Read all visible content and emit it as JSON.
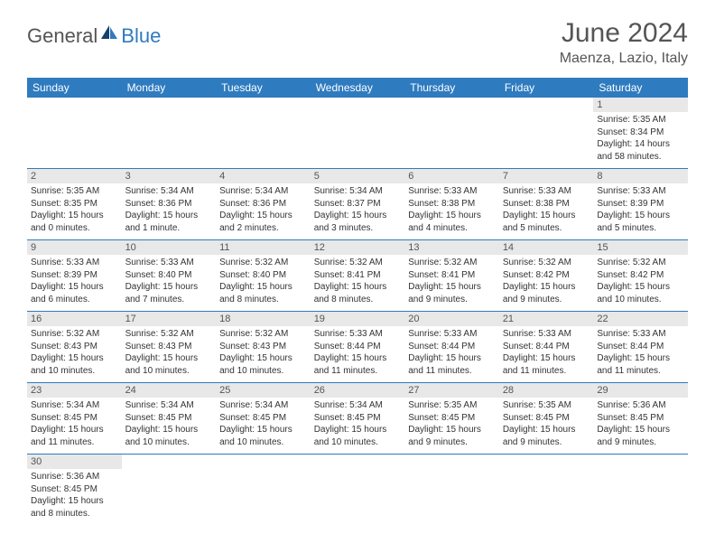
{
  "brand": {
    "part1": "General",
    "part2": "Blue"
  },
  "title": "June 2024",
  "location": "Maenza, Lazio, Italy",
  "colors": {
    "header_bg": "#2f7bbf",
    "header_fg": "#ffffff",
    "daynum_bg": "#e8e8e8",
    "border": "#2f7bbf",
    "brand_grey": "#555555",
    "brand_blue": "#2f7bbf"
  },
  "weekdays": [
    "Sunday",
    "Monday",
    "Tuesday",
    "Wednesday",
    "Thursday",
    "Friday",
    "Saturday"
  ],
  "weeks": [
    [
      null,
      null,
      null,
      null,
      null,
      null,
      {
        "n": "1",
        "sunrise": "5:35 AM",
        "sunset": "8:34 PM",
        "daylight": "14 hours and 58 minutes."
      }
    ],
    [
      {
        "n": "2",
        "sunrise": "5:35 AM",
        "sunset": "8:35 PM",
        "daylight": "15 hours and 0 minutes."
      },
      {
        "n": "3",
        "sunrise": "5:34 AM",
        "sunset": "8:36 PM",
        "daylight": "15 hours and 1 minute."
      },
      {
        "n": "4",
        "sunrise": "5:34 AM",
        "sunset": "8:36 PM",
        "daylight": "15 hours and 2 minutes."
      },
      {
        "n": "5",
        "sunrise": "5:34 AM",
        "sunset": "8:37 PM",
        "daylight": "15 hours and 3 minutes."
      },
      {
        "n": "6",
        "sunrise": "5:33 AM",
        "sunset": "8:38 PM",
        "daylight": "15 hours and 4 minutes."
      },
      {
        "n": "7",
        "sunrise": "5:33 AM",
        "sunset": "8:38 PM",
        "daylight": "15 hours and 5 minutes."
      },
      {
        "n": "8",
        "sunrise": "5:33 AM",
        "sunset": "8:39 PM",
        "daylight": "15 hours and 5 minutes."
      }
    ],
    [
      {
        "n": "9",
        "sunrise": "5:33 AM",
        "sunset": "8:39 PM",
        "daylight": "15 hours and 6 minutes."
      },
      {
        "n": "10",
        "sunrise": "5:33 AM",
        "sunset": "8:40 PM",
        "daylight": "15 hours and 7 minutes."
      },
      {
        "n": "11",
        "sunrise": "5:32 AM",
        "sunset": "8:40 PM",
        "daylight": "15 hours and 8 minutes."
      },
      {
        "n": "12",
        "sunrise": "5:32 AM",
        "sunset": "8:41 PM",
        "daylight": "15 hours and 8 minutes."
      },
      {
        "n": "13",
        "sunrise": "5:32 AM",
        "sunset": "8:41 PM",
        "daylight": "15 hours and 9 minutes."
      },
      {
        "n": "14",
        "sunrise": "5:32 AM",
        "sunset": "8:42 PM",
        "daylight": "15 hours and 9 minutes."
      },
      {
        "n": "15",
        "sunrise": "5:32 AM",
        "sunset": "8:42 PM",
        "daylight": "15 hours and 10 minutes."
      }
    ],
    [
      {
        "n": "16",
        "sunrise": "5:32 AM",
        "sunset": "8:43 PM",
        "daylight": "15 hours and 10 minutes."
      },
      {
        "n": "17",
        "sunrise": "5:32 AM",
        "sunset": "8:43 PM",
        "daylight": "15 hours and 10 minutes."
      },
      {
        "n": "18",
        "sunrise": "5:32 AM",
        "sunset": "8:43 PM",
        "daylight": "15 hours and 10 minutes."
      },
      {
        "n": "19",
        "sunrise": "5:33 AM",
        "sunset": "8:44 PM",
        "daylight": "15 hours and 11 minutes."
      },
      {
        "n": "20",
        "sunrise": "5:33 AM",
        "sunset": "8:44 PM",
        "daylight": "15 hours and 11 minutes."
      },
      {
        "n": "21",
        "sunrise": "5:33 AM",
        "sunset": "8:44 PM",
        "daylight": "15 hours and 11 minutes."
      },
      {
        "n": "22",
        "sunrise": "5:33 AM",
        "sunset": "8:44 PM",
        "daylight": "15 hours and 11 minutes."
      }
    ],
    [
      {
        "n": "23",
        "sunrise": "5:34 AM",
        "sunset": "8:45 PM",
        "daylight": "15 hours and 11 minutes."
      },
      {
        "n": "24",
        "sunrise": "5:34 AM",
        "sunset": "8:45 PM",
        "daylight": "15 hours and 10 minutes."
      },
      {
        "n": "25",
        "sunrise": "5:34 AM",
        "sunset": "8:45 PM",
        "daylight": "15 hours and 10 minutes."
      },
      {
        "n": "26",
        "sunrise": "5:34 AM",
        "sunset": "8:45 PM",
        "daylight": "15 hours and 10 minutes."
      },
      {
        "n": "27",
        "sunrise": "5:35 AM",
        "sunset": "8:45 PM",
        "daylight": "15 hours and 9 minutes."
      },
      {
        "n": "28",
        "sunrise": "5:35 AM",
        "sunset": "8:45 PM",
        "daylight": "15 hours and 9 minutes."
      },
      {
        "n": "29",
        "sunrise": "5:36 AM",
        "sunset": "8:45 PM",
        "daylight": "15 hours and 9 minutes."
      }
    ],
    [
      {
        "n": "30",
        "sunrise": "5:36 AM",
        "sunset": "8:45 PM",
        "daylight": "15 hours and 8 minutes."
      },
      null,
      null,
      null,
      null,
      null,
      null
    ]
  ],
  "labels": {
    "sunrise": "Sunrise:",
    "sunset": "Sunset:",
    "daylight": "Daylight:"
  }
}
